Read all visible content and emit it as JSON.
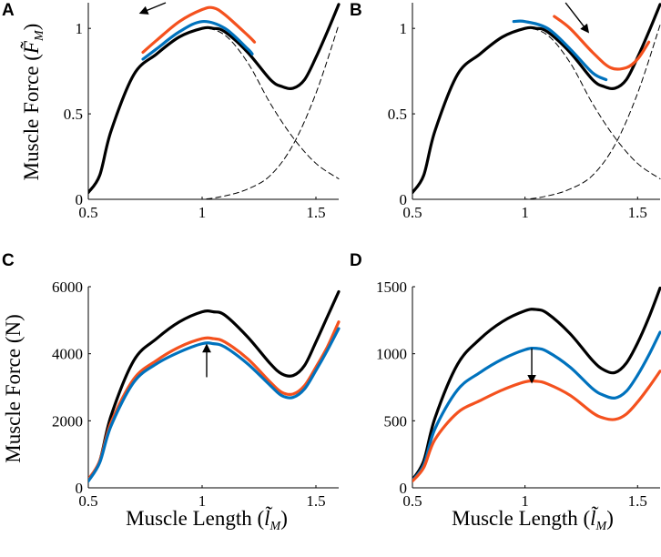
{
  "colors": {
    "black": "#000000",
    "blue": "#0072BD",
    "orange": "#F4511E"
  },
  "chart_data": [
    {
      "panel": "A",
      "type": "line",
      "xlabel": "",
      "ylabel": "Muscle Force (F̃_M)",
      "ylabel_main": "Muscle Force (",
      "ylabel_sym": "F̃",
      "ylabel_sub": "M",
      "ylabel_close": ")",
      "xlim": [
        0.5,
        1.6
      ],
      "ylim": [
        0,
        1.15
      ],
      "xticks": [
        0.5,
        1,
        1.5
      ],
      "xtick_labels": [
        "0.5",
        "1",
        "1.5"
      ],
      "yticks": [
        0,
        0.5,
        1
      ],
      "ytick_labels": [
        "0",
        "0.5",
        "1"
      ],
      "series": [
        {
          "name": "passive",
          "color": "black",
          "dashed": true,
          "thin": true,
          "x": [
            0.5,
            0.7,
            0.9,
            1.0,
            1.1,
            1.2,
            1.3,
            1.4,
            1.5,
            1.6
          ],
          "y": [
            0,
            0,
            0,
            0,
            0.02,
            0.06,
            0.14,
            0.32,
            0.62,
            1.02
          ]
        },
        {
          "name": "active",
          "color": "black",
          "dashed": true,
          "thin": true,
          "x": [
            0.5,
            0.55,
            0.6,
            0.7,
            0.8,
            0.9,
            1.0,
            1.1,
            1.2,
            1.3,
            1.4,
            1.5,
            1.6
          ],
          "y": [
            0.04,
            0.14,
            0.4,
            0.73,
            0.85,
            0.95,
            1.0,
            0.96,
            0.8,
            0.56,
            0.36,
            0.21,
            0.12
          ]
        },
        {
          "name": "total",
          "color": "black",
          "width": 3.2,
          "x": [
            0.5,
            0.55,
            0.6,
            0.7,
            0.8,
            0.9,
            1.0,
            1.05,
            1.1,
            1.2,
            1.3,
            1.35,
            1.4,
            1.45,
            1.5,
            1.55,
            1.6
          ],
          "y": [
            0.04,
            0.14,
            0.4,
            0.73,
            0.85,
            0.95,
            1.0,
            1.0,
            0.98,
            0.86,
            0.7,
            0.66,
            0.65,
            0.7,
            0.83,
            0.98,
            1.14
          ]
        },
        {
          "name": "blue",
          "color": "blue",
          "width": 3.2,
          "x": [
            0.74,
            0.8,
            0.9,
            1.0,
            1.1,
            1.2,
            1.22
          ],
          "y": [
            0.82,
            0.88,
            0.98,
            1.04,
            1.0,
            0.88,
            0.85
          ]
        },
        {
          "name": "orange",
          "color": "orange",
          "width": 3.2,
          "x": [
            0.74,
            0.8,
            0.9,
            1.0,
            1.05,
            1.1,
            1.2,
            1.23
          ],
          "y": [
            0.86,
            0.93,
            1.04,
            1.11,
            1.12,
            1.08,
            0.96,
            0.92
          ]
        }
      ],
      "arrows": [
        {
          "from": [
            0.84,
            1.15
          ],
          "to": [
            0.73,
            1.09
          ]
        }
      ]
    },
    {
      "panel": "B",
      "type": "line",
      "xlabel": "",
      "ylabel": "",
      "xlim": [
        0.5,
        1.6
      ],
      "ylim": [
        0,
        1.15
      ],
      "xticks": [
        0.5,
        1,
        1.5
      ],
      "xtick_labels": [
        "0.5",
        "1",
        "1.5"
      ],
      "yticks": [
        0,
        0.5,
        1
      ],
      "ytick_labels": [
        "0",
        "0.5",
        "1"
      ],
      "series": [
        {
          "name": "passive",
          "color": "black",
          "dashed": true,
          "thin": true,
          "x": [
            0.5,
            0.7,
            0.9,
            1.0,
            1.1,
            1.2,
            1.3,
            1.4,
            1.5,
            1.6
          ],
          "y": [
            0,
            0,
            0,
            0,
            0.02,
            0.06,
            0.14,
            0.32,
            0.62,
            1.02
          ]
        },
        {
          "name": "active",
          "color": "black",
          "dashed": true,
          "thin": true,
          "x": [
            0.5,
            0.55,
            0.6,
            0.7,
            0.8,
            0.9,
            1.0,
            1.1,
            1.2,
            1.3,
            1.4,
            1.5,
            1.6
          ],
          "y": [
            0.04,
            0.14,
            0.4,
            0.73,
            0.85,
            0.95,
            1.0,
            0.96,
            0.8,
            0.56,
            0.36,
            0.21,
            0.12
          ]
        },
        {
          "name": "total",
          "color": "black",
          "width": 3.2,
          "x": [
            0.5,
            0.55,
            0.6,
            0.7,
            0.8,
            0.9,
            1.0,
            1.05,
            1.1,
            1.2,
            1.3,
            1.35,
            1.4,
            1.45,
            1.5,
            1.55,
            1.6
          ],
          "y": [
            0.04,
            0.14,
            0.4,
            0.73,
            0.85,
            0.95,
            1.0,
            1.0,
            0.98,
            0.86,
            0.7,
            0.66,
            0.65,
            0.7,
            0.83,
            0.98,
            1.14
          ]
        },
        {
          "name": "blue",
          "color": "blue",
          "width": 3.2,
          "x": [
            0.95,
            1.0,
            1.1,
            1.2,
            1.3,
            1.36
          ],
          "y": [
            1.04,
            1.04,
            1.0,
            0.88,
            0.74,
            0.7
          ]
        },
        {
          "name": "orange",
          "color": "orange",
          "width": 3.2,
          "x": [
            1.13,
            1.2,
            1.3,
            1.38,
            1.45,
            1.5,
            1.55
          ],
          "y": [
            1.07,
            1.0,
            0.86,
            0.77,
            0.77,
            0.82,
            0.92
          ]
        }
      ],
      "arrows": [
        {
          "from": [
            1.18,
            1.15
          ],
          "to": [
            1.28,
            0.98
          ]
        }
      ]
    },
    {
      "panel": "C",
      "type": "line",
      "xlabel": "Muscle Length (l̃_M)",
      "xlabel_main": "Muscle Length (",
      "xlabel_sym": "l̃",
      "xlabel_sub": "M",
      "xlabel_close": ")",
      "ylabel": "Muscle Force (N)",
      "xlim": [
        0.5,
        1.6
      ],
      "ylim": [
        0,
        6000
      ],
      "xticks": [
        0.5,
        1,
        1.5
      ],
      "xtick_labels": [
        "0.5",
        "1",
        "1.5"
      ],
      "yticks": [
        0,
        2000,
        4000,
        6000
      ],
      "ytick_labels": [
        "0",
        "2000",
        "4000",
        "6000"
      ],
      "series": [
        {
          "name": "black",
          "color": "black",
          "width": 3.2,
          "x": [
            0.5,
            0.55,
            0.6,
            0.7,
            0.8,
            0.9,
            1.0,
            1.05,
            1.1,
            1.2,
            1.3,
            1.35,
            1.4,
            1.45,
            1.5,
            1.55,
            1.6
          ],
          "y": [
            250,
            800,
            2150,
            3800,
            4450,
            4950,
            5250,
            5250,
            5150,
            4500,
            3700,
            3400,
            3350,
            3650,
            4350,
            5100,
            5850
          ]
        },
        {
          "name": "orange",
          "color": "orange",
          "width": 3.2,
          "x": [
            0.5,
            0.55,
            0.6,
            0.7,
            0.8,
            0.9,
            1.0,
            1.05,
            1.1,
            1.2,
            1.3,
            1.35,
            1.4,
            1.45,
            1.5,
            1.55,
            1.6
          ],
          "y": [
            250,
            800,
            1950,
            3250,
            3800,
            4200,
            4450,
            4450,
            4350,
            3850,
            3150,
            2850,
            2800,
            3050,
            3600,
            4200,
            4950
          ]
        },
        {
          "name": "blue",
          "color": "blue",
          "width": 3.2,
          "x": [
            0.5,
            0.55,
            0.6,
            0.7,
            0.8,
            0.9,
            1.0,
            1.05,
            1.1,
            1.2,
            1.3,
            1.35,
            1.4,
            1.45,
            1.5,
            1.55,
            1.6
          ],
          "y": [
            200,
            750,
            1850,
            3150,
            3700,
            4050,
            4300,
            4300,
            4200,
            3700,
            3050,
            2750,
            2700,
            2950,
            3500,
            4100,
            4750
          ]
        }
      ],
      "arrows": [
        {
          "from": [
            1.02,
            3300
          ],
          "to": [
            1.02,
            4250
          ]
        }
      ]
    },
    {
      "panel": "D",
      "type": "line",
      "xlabel": "Muscle Length (l̃_M)",
      "xlabel_main": "Muscle Length (",
      "xlabel_sym": "l̃",
      "xlabel_sub": "M",
      "xlabel_close": ")",
      "ylabel": "",
      "xlim": [
        0.5,
        1.6
      ],
      "ylim": [
        0,
        1500
      ],
      "xticks": [
        0.5,
        1,
        1.5
      ],
      "xtick_labels": [
        "0.5",
        "1",
        "1.5"
      ],
      "yticks": [
        0,
        500,
        1000,
        1500
      ],
      "ytick_labels": [
        "0",
        "500",
        "1000",
        "1500"
      ],
      "series": [
        {
          "name": "black",
          "color": "black",
          "width": 3.2,
          "x": [
            0.5,
            0.55,
            0.6,
            0.7,
            0.8,
            0.9,
            1.0,
            1.05,
            1.1,
            1.2,
            1.3,
            1.35,
            1.4,
            1.45,
            1.5,
            1.55,
            1.6
          ],
          "y": [
            60,
            200,
            520,
            920,
            1110,
            1240,
            1320,
            1330,
            1300,
            1150,
            950,
            880,
            860,
            930,
            1080,
            1270,
            1490
          ]
        },
        {
          "name": "blue",
          "color": "blue",
          "width": 3.2,
          "x": [
            0.5,
            0.55,
            0.6,
            0.7,
            0.8,
            0.9,
            1.0,
            1.05,
            1.1,
            1.2,
            1.3,
            1.35,
            1.4,
            1.45,
            1.5,
            1.55,
            1.6
          ],
          "y": [
            55,
            170,
            440,
            730,
            860,
            960,
            1030,
            1040,
            1015,
            900,
            740,
            690,
            670,
            720,
            840,
            990,
            1160
          ]
        },
        {
          "name": "orange",
          "color": "orange",
          "width": 3.2,
          "x": [
            0.5,
            0.55,
            0.6,
            0.7,
            0.8,
            0.9,
            1.0,
            1.05,
            1.1,
            1.2,
            1.3,
            1.35,
            1.4,
            1.45,
            1.5,
            1.55,
            1.6
          ],
          "y": [
            50,
            150,
            360,
            560,
            650,
            730,
            790,
            795,
            775,
            690,
            560,
            520,
            510,
            550,
            640,
            750,
            870
          ]
        }
      ],
      "arrows": [
        {
          "from": [
            1.03,
            1040
          ],
          "to": [
            1.03,
            790
          ]
        }
      ]
    }
  ]
}
